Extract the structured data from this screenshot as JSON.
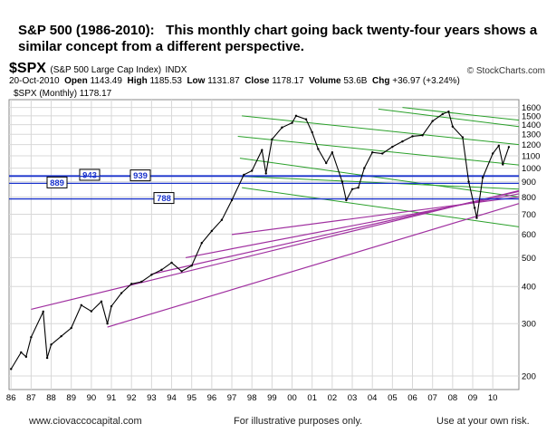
{
  "headline": {
    "bold": "S&P 500 (1986-2010):",
    "text": "This monthly chart going back twenty-four years shows a similar concept from a different perspective."
  },
  "header": {
    "symbol": "$SPX",
    "name": "(S&P 500 Large Cap Index)",
    "exchange": "INDX",
    "watermark": "© StockCharts.com",
    "date": "20-Oct-2010",
    "open_label": "Open",
    "open": "1143.49",
    "high_label": "High",
    "high": "1185.53",
    "low_label": "Low",
    "low": "1131.87",
    "close_label": "Close",
    "close": "1178.17",
    "volume_label": "Volume",
    "volume": "53.6B",
    "chg_label": "Chg",
    "chg": "+36.97 (+3.24%)",
    "legend": "$SPX (Monthly) 1178.17"
  },
  "chart_data": {
    "type": "line",
    "title": "",
    "y_scale": "log",
    "ylim": [
      180,
      1700
    ],
    "xlim": [
      1985.9,
      2011.3
    ],
    "x_ticks": [
      {
        "year": 1986,
        "label": "86"
      },
      {
        "year": 1987,
        "label": "87"
      },
      {
        "year": 1988,
        "label": "88"
      },
      {
        "year": 1989,
        "label": "89"
      },
      {
        "year": 1990,
        "label": "90"
      },
      {
        "year": 1991,
        "label": "91"
      },
      {
        "year": 1992,
        "label": "92"
      },
      {
        "year": 1993,
        "label": "93"
      },
      {
        "year": 1994,
        "label": "94"
      },
      {
        "year": 1995,
        "label": "95"
      },
      {
        "year": 1996,
        "label": "96"
      },
      {
        "year": 1997,
        "label": "97"
      },
      {
        "year": 1998,
        "label": "98"
      },
      {
        "year": 1999,
        "label": "99"
      },
      {
        "year": 2000,
        "label": "00"
      },
      {
        "year": 2001,
        "label": "01"
      },
      {
        "year": 2002,
        "label": "02"
      },
      {
        "year": 2003,
        "label": "03"
      },
      {
        "year": 2004,
        "label": "04"
      },
      {
        "year": 2005,
        "label": "05"
      },
      {
        "year": 2006,
        "label": "06"
      },
      {
        "year": 2007,
        "label": "07"
      },
      {
        "year": 2008,
        "label": "08"
      },
      {
        "year": 2009,
        "label": "09"
      },
      {
        "year": 2010,
        "label": "10"
      }
    ],
    "y_ticks": [
      {
        "value": 1600,
        "label": "1600"
      },
      {
        "value": 1500,
        "label": "1500"
      },
      {
        "value": 1400,
        "label": "1400"
      },
      {
        "value": 1300,
        "label": "1300"
      },
      {
        "value": 1200,
        "label": "1200"
      },
      {
        "value": 1100,
        "label": "1100"
      },
      {
        "value": 1000,
        "label": "1000"
      },
      {
        "value": 900,
        "label": "900"
      },
      {
        "value": 800,
        "label": "800"
      },
      {
        "value": 700,
        "label": "700"
      },
      {
        "value": 600,
        "label": "600"
      },
      {
        "value": 500,
        "label": "500"
      },
      {
        "value": 400,
        "label": "400"
      },
      {
        "value": 300,
        "label": "300"
      },
      {
        "value": 200,
        "label": "200"
      }
    ],
    "series": [
      {
        "values": [
          [
            1986.0,
            211
          ],
          [
            1986.5,
            240
          ],
          [
            1986.75,
            232
          ],
          [
            1987.0,
            270
          ],
          [
            1987.6,
            329
          ],
          [
            1987.8,
            230
          ],
          [
            1988.0,
            255
          ],
          [
            1988.5,
            272
          ],
          [
            1989.0,
            290
          ],
          [
            1989.5,
            346
          ],
          [
            1990.0,
            330
          ],
          [
            1990.5,
            356
          ],
          [
            1990.8,
            300
          ],
          [
            1991.0,
            343
          ],
          [
            1991.5,
            380
          ],
          [
            1992.0,
            408
          ],
          [
            1992.5,
            415
          ],
          [
            1993.0,
            438
          ],
          [
            1993.5,
            455
          ],
          [
            1994.0,
            481
          ],
          [
            1994.5,
            450
          ],
          [
            1995.0,
            470
          ],
          [
            1995.5,
            560
          ],
          [
            1996.0,
            615
          ],
          [
            1996.5,
            670
          ],
          [
            1997.0,
            780
          ],
          [
            1997.6,
            950
          ],
          [
            1998.0,
            980
          ],
          [
            1998.5,
            1150
          ],
          [
            1998.7,
            960
          ],
          [
            1999.0,
            1250
          ],
          [
            1999.5,
            1370
          ],
          [
            2000.0,
            1420
          ],
          [
            2000.2,
            1500
          ],
          [
            2000.7,
            1460
          ],
          [
            2001.0,
            1320
          ],
          [
            2001.3,
            1160
          ],
          [
            2001.7,
            1040
          ],
          [
            2002.0,
            1130
          ],
          [
            2002.5,
            900
          ],
          [
            2002.7,
            780
          ],
          [
            2003.0,
            850
          ],
          [
            2003.3,
            860
          ],
          [
            2003.6,
            1000
          ],
          [
            2004.0,
            1130
          ],
          [
            2004.5,
            1120
          ],
          [
            2005.0,
            1180
          ],
          [
            2005.5,
            1230
          ],
          [
            2006.0,
            1280
          ],
          [
            2006.5,
            1290
          ],
          [
            2007.0,
            1440
          ],
          [
            2007.5,
            1520
          ],
          [
            2007.8,
            1549
          ],
          [
            2008.0,
            1380
          ],
          [
            2008.5,
            1270
          ],
          [
            2008.8,
            900
          ],
          [
            2009.1,
            735
          ],
          [
            2009.2,
            680
          ],
          [
            2009.5,
            930
          ],
          [
            2010.0,
            1120
          ],
          [
            2010.3,
            1190
          ],
          [
            2010.5,
            1030
          ],
          [
            2010.8,
            1178
          ]
        ]
      }
    ],
    "annotations": {
      "support_levels": [
        {
          "value": 943,
          "label": "943"
        },
        {
          "value": 939,
          "label": "939"
        },
        {
          "value": 889,
          "label": "889"
        },
        {
          "value": 788,
          "label": "788"
        }
      ],
      "green_channel_lines": [
        {
          "x1": 1997.5,
          "y1": 1500,
          "x2": 2011.3,
          "y2": 1200
        },
        {
          "x1": 1997.3,
          "y1": 1280,
          "x2": 2011.3,
          "y2": 1025
        },
        {
          "x1": 1997.4,
          "y1": 1080,
          "x2": 2011.3,
          "y2": 800
        },
        {
          "x1": 1997.3,
          "y1": 940,
          "x2": 2011.3,
          "y2": 850
        },
        {
          "x1": 1997.5,
          "y1": 860,
          "x2": 2011.3,
          "y2": 635
        },
        {
          "x1": 2004.3,
          "y1": 1580,
          "x2": 2011.3,
          "y2": 1380
        },
        {
          "x1": 2005.5,
          "y1": 1600,
          "x2": 2011.3,
          "y2": 1450
        }
      ],
      "purple_trend_lines": [
        {
          "x1": 1987.0,
          "y1": 335,
          "x2": 2011.3,
          "y2": 840
        },
        {
          "x1": 1990.8,
          "y1": 292,
          "x2": 2011.3,
          "y2": 760
        },
        {
          "x1": 1993.0,
          "y1": 440,
          "x2": 2011.3,
          "y2": 835
        },
        {
          "x1": 1994.7,
          "y1": 500,
          "x2": 2011.3,
          "y2": 820
        },
        {
          "x1": 1997.0,
          "y1": 598,
          "x2": 2011.3,
          "y2": 800
        }
      ]
    }
  },
  "footer": {
    "left": "www.ciovaccocapital.com",
    "center": "For illustrative purposes only.",
    "right": "Use at your own risk."
  },
  "colors": {
    "price": "#000000",
    "green_lines": "#2aa02a",
    "purple_lines": "#a030a0",
    "support_lines": "#1a33cc",
    "grid": "#d8d8d8"
  }
}
